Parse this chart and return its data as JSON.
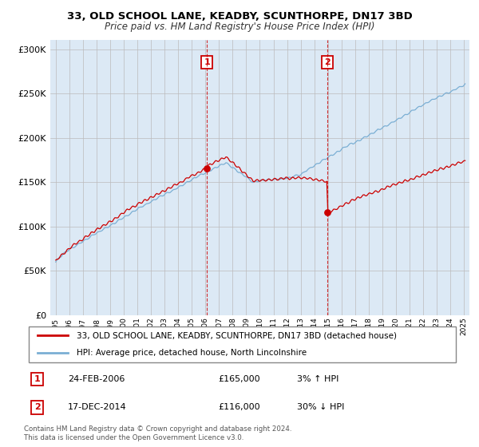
{
  "title": "33, OLD SCHOOL LANE, KEADBY, SCUNTHORPE, DN17 3BD",
  "subtitle": "Price paid vs. HM Land Registry's House Price Index (HPI)",
  "legend_line1": "33, OLD SCHOOL LANE, KEADBY, SCUNTHORPE, DN17 3BD (detached house)",
  "legend_line2": "HPI: Average price, detached house, North Lincolnshire",
  "transaction1_date": "24-FEB-2006",
  "transaction1_price": "£165,000",
  "transaction1_hpi": "3% ↑ HPI",
  "transaction1_year": 2006.12,
  "transaction1_value": 165000,
  "transaction2_date": "17-DEC-2014",
  "transaction2_price": "£116,000",
  "transaction2_hpi": "30% ↓ HPI",
  "transaction2_year": 2014.96,
  "transaction2_value": 116000,
  "footer": "Contains HM Land Registry data © Crown copyright and database right 2024.\nThis data is licensed under the Open Government Licence v3.0.",
  "hpi_color": "#7bafd4",
  "price_color": "#cc0000",
  "shade_color": "#dce9f5",
  "bg_color": "#dce9f5",
  "plot_bg": "#ffffff",
  "ylim": [
    0,
    310000
  ],
  "yticks": [
    0,
    50000,
    100000,
    150000,
    200000,
    250000,
    300000
  ],
  "xlim_start": 1994.6,
  "xlim_end": 2025.4
}
